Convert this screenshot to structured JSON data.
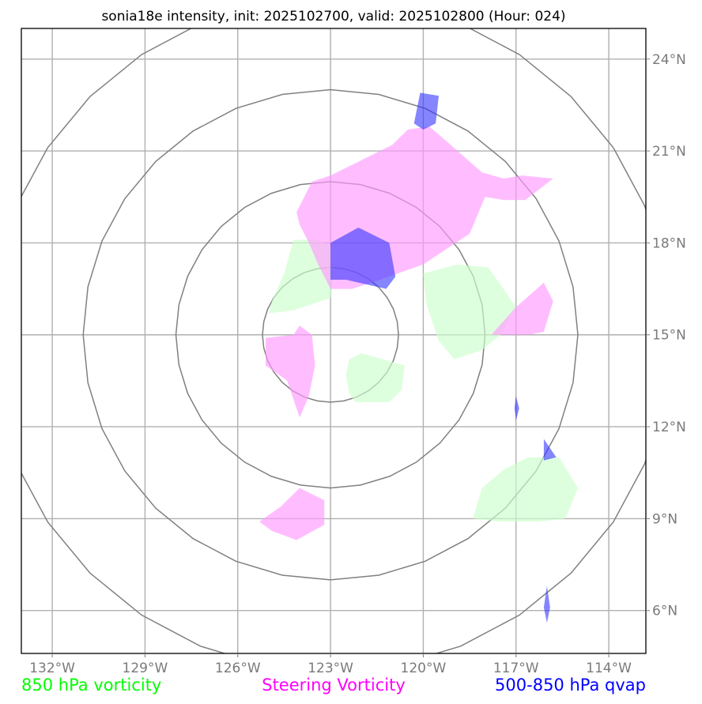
{
  "chart_data": {
    "type": "map-overlay",
    "title": "sonia18e intensity, init: 2025102700, valid: 2025102800 (Hour: 024)",
    "xlim": [
      -133,
      -112.8
    ],
    "ylim": [
      4.6,
      25.0
    ],
    "x_ticks": [
      -132,
      -129,
      -126,
      -123,
      -120,
      -117,
      -114
    ],
    "x_tick_labels": [
      "132°W",
      "129°W",
      "126°W",
      "123°W",
      "120°W",
      "117°W",
      "114°W"
    ],
    "y_ticks": [
      6,
      9,
      12,
      15,
      18,
      21,
      24
    ],
    "y_tick_labels": [
      "6°N",
      "9°N",
      "12°N",
      "15°N",
      "18°N",
      "21°N",
      "24°N"
    ],
    "grid": true,
    "rings": {
      "center_lon": -123.0,
      "center_lat": 15.0,
      "radii_deg": [
        2.2,
        5.0,
        8.0,
        11.0
      ]
    },
    "layers": [
      {
        "name": "850 hPa vorticity",
        "color": "#00ff00",
        "fill": "#ccffcc",
        "opacity": 0.65,
        "polygons": [
          [
            [
              -124.2,
              18.1
            ],
            [
              -123.4,
              18.1
            ],
            [
              -123.0,
              17.9
            ],
            [
              -122.9,
              16.8
            ],
            [
              -123.0,
              16.2
            ],
            [
              -124.2,
              15.8
            ],
            [
              -125.0,
              15.7
            ],
            [
              -124.9,
              16.1
            ],
            [
              -124.5,
              17.0
            ]
          ],
          [
            [
              -122.4,
              14.2
            ],
            [
              -122.0,
              14.4
            ],
            [
              -120.6,
              14.0
            ],
            [
              -120.7,
              13.2
            ],
            [
              -121.1,
              12.8
            ],
            [
              -121.7,
              12.8
            ],
            [
              -122.2,
              12.8
            ],
            [
              -122.4,
              13.1
            ],
            [
              -122.5,
              13.7
            ]
          ],
          [
            [
              -120.0,
              17.0
            ],
            [
              -118.9,
              17.3
            ],
            [
              -117.9,
              17.2
            ],
            [
              -117.4,
              16.5
            ],
            [
              -117.0,
              15.9
            ],
            [
              -117.5,
              15.0
            ],
            [
              -118.1,
              14.5
            ],
            [
              -119.0,
              14.2
            ],
            [
              -119.5,
              14.8
            ],
            [
              -119.9,
              16.0
            ]
          ],
          [
            [
              -116.6,
              11.0
            ],
            [
              -115.6,
              11.0
            ],
            [
              -115.0,
              10.0
            ],
            [
              -115.4,
              9.0
            ],
            [
              -116.3,
              8.9
            ],
            [
              -117.5,
              8.9
            ],
            [
              -118.4,
              9.0
            ],
            [
              -118.1,
              10.0
            ],
            [
              -117.4,
              10.6
            ]
          ]
        ]
      },
      {
        "name": "Steering Vorticity",
        "color": "#ff00ff",
        "fill": "#ff99ff",
        "opacity": 0.65,
        "polygons": [
          [
            [
              -121.0,
              21.2
            ],
            [
              -122.0,
              20.7
            ],
            [
              -123.0,
              20.2
            ],
            [
              -123.6,
              20.0
            ],
            [
              -124.1,
              19.0
            ],
            [
              -124.0,
              18.6
            ],
            [
              -123.7,
              18.0
            ],
            [
              -123.4,
              17.3
            ],
            [
              -123.0,
              16.5
            ],
            [
              -122.3,
              16.5
            ],
            [
              -121.4,
              16.8
            ],
            [
              -120.0,
              17.3
            ],
            [
              -119.1,
              17.9
            ],
            [
              -118.5,
              18.3
            ],
            [
              -118.0,
              19.5
            ],
            [
              -117.4,
              19.4
            ],
            [
              -116.7,
              19.4
            ],
            [
              -115.8,
              20.1
            ],
            [
              -116.8,
              20.2
            ],
            [
              -117.4,
              20.1
            ],
            [
              -118.1,
              20.3
            ],
            [
              -119.0,
              21.1
            ],
            [
              -119.8,
              21.8
            ],
            [
              -120.5,
              21.7
            ]
          ],
          [
            [
              -124.2,
              15.0
            ],
            [
              -124.0,
              15.3
            ],
            [
              -123.6,
              15.0
            ],
            [
              -123.5,
              14.0
            ],
            [
              -123.7,
              13.0
            ],
            [
              -124.0,
              12.3
            ],
            [
              -124.4,
              13.5
            ],
            [
              -125.1,
              14.0
            ],
            [
              -125.1,
              14.9
            ]
          ],
          [
            [
              -116.1,
              16.7
            ],
            [
              -115.8,
              16.1
            ],
            [
              -116.1,
              15.1
            ],
            [
              -116.6,
              15.0
            ],
            [
              -117.8,
              15.0
            ],
            [
              -117.0,
              15.9
            ]
          ],
          [
            [
              -124.0,
              10.0
            ],
            [
              -123.2,
              9.6
            ],
            [
              -123.2,
              8.8
            ],
            [
              -124.1,
              8.3
            ],
            [
              -124.9,
              8.6
            ],
            [
              -125.3,
              8.9
            ],
            [
              -124.6,
              9.4
            ]
          ]
        ]
      },
      {
        "name": "500-850 hPa qvap",
        "color": "#0000ff",
        "fill": "#3333ff",
        "opacity": 0.6,
        "polygons": [
          [
            [
              -120.1,
              22.9
            ],
            [
              -119.5,
              22.8
            ],
            [
              -119.6,
              21.9
            ],
            [
              -120.0,
              21.7
            ],
            [
              -120.3,
              21.9
            ]
          ],
          [
            [
              -122.1,
              18.5
            ],
            [
              -121.1,
              18.0
            ],
            [
              -120.9,
              16.9
            ],
            [
              -121.2,
              16.5
            ],
            [
              -122.5,
              16.8
            ],
            [
              -123.0,
              16.8
            ],
            [
              -123.0,
              18.0
            ]
          ],
          [
            [
              -117.0,
              13.0
            ],
            [
              -116.9,
              12.6
            ],
            [
              -117.0,
              12.2
            ],
            [
              -117.05,
              12.6
            ]
          ],
          [
            [
              -116.1,
              11.6
            ],
            [
              -115.7,
              11.0
            ],
            [
              -116.1,
              10.9
            ]
          ],
          [
            [
              -116.0,
              6.8
            ],
            [
              -115.9,
              6.1
            ],
            [
              -116.0,
              5.6
            ],
            [
              -116.1,
              6.1
            ]
          ]
        ]
      }
    ],
    "legend": [
      {
        "label": "850 hPa vorticity",
        "color": "#00ff00"
      },
      {
        "label": "Steering Vorticity",
        "color": "#ff00ff"
      },
      {
        "label": "500-850 hPa qvap",
        "color": "#0000ff"
      }
    ]
  }
}
